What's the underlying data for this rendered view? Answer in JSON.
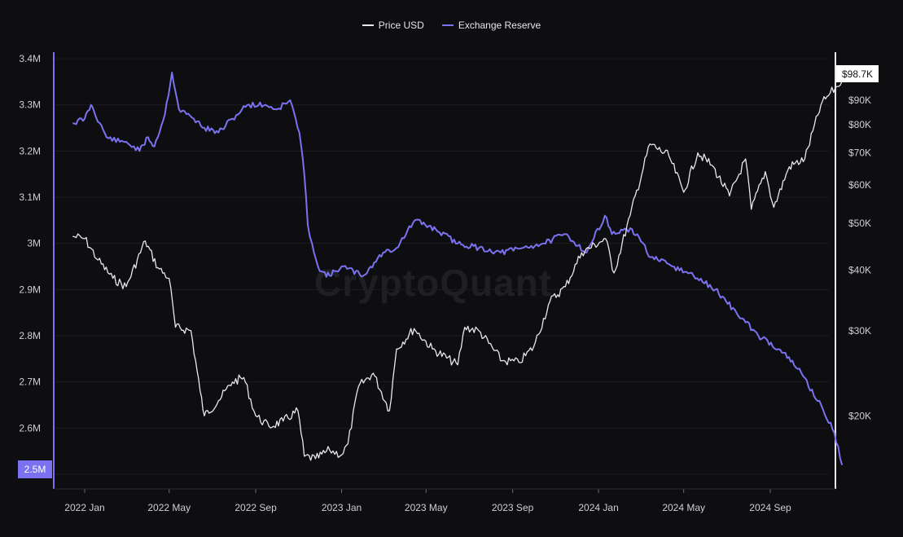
{
  "legend": {
    "price_label": "Price USD",
    "reserve_label": "Exchange Reserve"
  },
  "watermark": "CryptoQuant",
  "colors": {
    "background": "#0e0e10",
    "price": "#e8e8ec",
    "reserve": "#7a72f0",
    "grid": "#1c1c22",
    "axis_text": "#cfcfd4"
  },
  "chart_data": {
    "type": "line",
    "x_ticks": [
      "2022 Jan",
      "2022 May",
      "2022 Sep",
      "2023 Jan",
      "2023 May",
      "2023 Sep",
      "2024 Jan",
      "2024 May",
      "2024 Sep"
    ],
    "y_left": {
      "scale": "linear",
      "range": [
        2.5,
        3.4
      ],
      "unit": "M",
      "ticks": [
        "3.4M",
        "3.3M",
        "3.2M",
        "3.1M",
        "3M",
        "2.9M",
        "2.8M",
        "2.7M",
        "2.6M"
      ],
      "current_label": "2.5M"
    },
    "y_right": {
      "scale": "log",
      "range": [
        15500,
        103000
      ],
      "ticks": [
        "$90K",
        "$80K",
        "$70K",
        "$60K",
        "$50K",
        "$40K",
        "$30K",
        "$20K"
      ],
      "current_label": "$98.7K"
    },
    "series": [
      {
        "name": "Price USD",
        "axis": "right",
        "x": [
          "2021-12-15",
          "2022-01-01",
          "2022-01-20",
          "2022-02-10",
          "2022-03-01",
          "2022-03-28",
          "2022-04-15",
          "2022-05-01",
          "2022-05-10",
          "2022-06-01",
          "2022-06-14",
          "2022-06-20",
          "2022-07-10",
          "2022-07-30",
          "2022-08-15",
          "2022-09-01",
          "2022-09-20",
          "2022-10-10",
          "2022-10-31",
          "2022-11-09",
          "2022-11-25",
          "2022-12-15",
          "2023-01-01",
          "2023-01-10",
          "2023-01-25",
          "2023-02-15",
          "2023-03-10",
          "2023-03-20",
          "2023-04-14",
          "2023-05-10",
          "2023-06-15",
          "2023-06-25",
          "2023-07-15",
          "2023-08-17",
          "2023-09-10",
          "2023-10-01",
          "2023-10-24",
          "2023-11-15",
          "2023-12-08",
          "2024-01-11",
          "2024-01-23",
          "2024-02-15",
          "2024-03-14",
          "2024-04-10",
          "2024-05-01",
          "2024-05-21",
          "2024-06-10",
          "2024-07-05",
          "2024-07-28",
          "2024-08-05",
          "2024-08-25",
          "2024-09-06",
          "2024-09-28",
          "2024-10-20",
          "2024-11-12",
          "2024-11-25",
          "2024-12-05",
          "2024-12-12"
        ],
        "y": [
          47000,
          46500,
          42000,
          38500,
          37000,
          46000,
          40500,
          38500,
          30500,
          30000,
          22500,
          20000,
          21500,
          23500,
          24000,
          20000,
          19000,
          19500,
          20500,
          16500,
          16300,
          17000,
          16600,
          17500,
          23000,
          24500,
          20500,
          27500,
          30300,
          27500,
          25500,
          30500,
          30000,
          26000,
          25800,
          27800,
          34500,
          37000,
          43500,
          46500,
          39500,
          52000,
          73000,
          69000,
          58000,
          70000,
          66000,
          57000,
          68000,
          53500,
          64000,
          54000,
          65500,
          68000,
          88000,
          93000,
          96000,
          98700
        ]
      },
      {
        "name": "Exchange Reserve",
        "axis": "left",
        "x": [
          "2021-12-15",
          "2022-01-01",
          "2022-01-10",
          "2022-02-01",
          "2022-02-20",
          "2022-03-01",
          "2022-03-20",
          "2022-04-01",
          "2022-04-10",
          "2022-04-25",
          "2022-05-05",
          "2022-05-15",
          "2022-06-05",
          "2022-06-20",
          "2022-07-10",
          "2022-07-30",
          "2022-08-20",
          "2022-09-15",
          "2022-10-01",
          "2022-10-20",
          "2022-11-02",
          "2022-11-09",
          "2022-11-14",
          "2022-11-20",
          "2022-12-01",
          "2022-12-15",
          "2023-01-01",
          "2023-02-01",
          "2023-03-01",
          "2023-03-20",
          "2023-04-15",
          "2023-05-15",
          "2023-06-15",
          "2023-07-15",
          "2023-08-15",
          "2023-09-15",
          "2023-10-15",
          "2023-11-15",
          "2023-12-15",
          "2024-01-10",
          "2024-01-20",
          "2024-02-10",
          "2024-02-25",
          "2024-03-15",
          "2024-04-15",
          "2024-05-15",
          "2024-06-15",
          "2024-07-15",
          "2024-08-15",
          "2024-09-15",
          "2024-10-15",
          "2024-11-15",
          "2024-12-01",
          "2024-12-12"
        ],
        "y": [
          3.26,
          3.27,
          3.3,
          3.23,
          3.22,
          3.22,
          3.2,
          3.23,
          3.21,
          3.28,
          3.37,
          3.29,
          3.27,
          3.25,
          3.24,
          3.27,
          3.3,
          3.3,
          3.29,
          3.31,
          3.24,
          3.15,
          3.04,
          3.0,
          2.94,
          2.93,
          2.95,
          2.93,
          2.98,
          2.99,
          3.05,
          3.03,
          3.0,
          2.99,
          2.98,
          2.99,
          3.0,
          3.02,
          2.98,
          3.06,
          3.02,
          3.03,
          3.02,
          2.97,
          2.95,
          2.93,
          2.9,
          2.85,
          2.8,
          2.77,
          2.72,
          2.64,
          2.59,
          2.52
        ]
      }
    ]
  }
}
